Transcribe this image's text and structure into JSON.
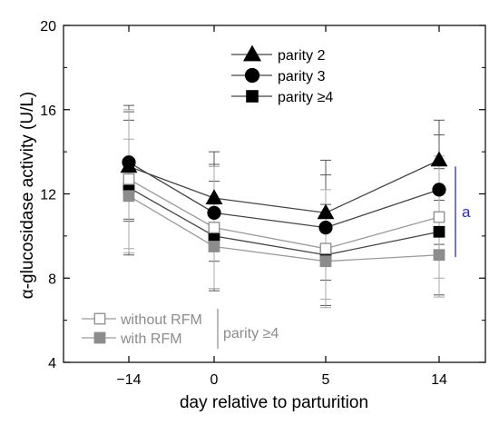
{
  "chart_data": {
    "type": "line",
    "title": "",
    "xlabel": "day relative to parturition",
    "ylabel": "α-glucosidase activity (U/L)",
    "categories": [
      "−14",
      "0",
      "5",
      "14"
    ],
    "x_tick_labels": [
      "−14",
      "0",
      "5",
      "14"
    ],
    "ylim": [
      4,
      20
    ],
    "y_ticks": [
      4,
      8,
      12,
      16,
      20
    ],
    "y_tick_labels": [
      "4",
      "8",
      "12",
      "16",
      "20"
    ],
    "grid": false,
    "legend_position": "top-center",
    "series": [
      {
        "name": "parity 2",
        "marker": "triangle",
        "fill": "filled",
        "color": "#000000",
        "line_color": "#444444",
        "values": [
          13.3,
          11.8,
          11.1,
          13.6
        ],
        "err": [
          2.6,
          2.2,
          2.5,
          1.9
        ]
      },
      {
        "name": "parity 3",
        "marker": "circle",
        "fill": "filled",
        "color": "#000000",
        "line_color": "#444444",
        "values": [
          13.5,
          11.1,
          10.4,
          12.2
        ],
        "err": [
          2.7,
          2.3,
          2.5,
          2.6
        ]
      },
      {
        "name": "parity ≥4",
        "marker": "square",
        "fill": "filled",
        "color": "#000000",
        "line_color": "#444444",
        "values": [
          12.3,
          10.0,
          9.1,
          10.2
        ],
        "err": [
          3.2,
          2.6,
          2.4,
          3.0
        ]
      },
      {
        "name": "without RFM",
        "marker": "square",
        "fill": "open",
        "color": "#8c8c8c",
        "line_color": "#9a9a9a",
        "values": [
          12.7,
          10.4,
          9.4,
          10.9
        ],
        "err": [
          3.3,
          2.9,
          2.8,
          2.9
        ]
      },
      {
        "name": "with RFM",
        "marker": "square",
        "fill": "filled",
        "color": "#8c8c8c",
        "line_color": "#9a9a9a",
        "values": [
          11.9,
          9.5,
          8.8,
          9.1
        ],
        "err": [
          2.7,
          2.0,
          1.8,
          2.0
        ]
      }
    ],
    "legend_upper": [
      "parity 2",
      "parity 3",
      "parity ≥4"
    ],
    "legend_lower": [
      "without RFM",
      "with RFM"
    ],
    "legend_lower_group_label": "parity ≥4",
    "annotation": {
      "text": "a",
      "color": "#2a2ad0",
      "y_range": [
        9.0,
        13.3
      ]
    }
  }
}
